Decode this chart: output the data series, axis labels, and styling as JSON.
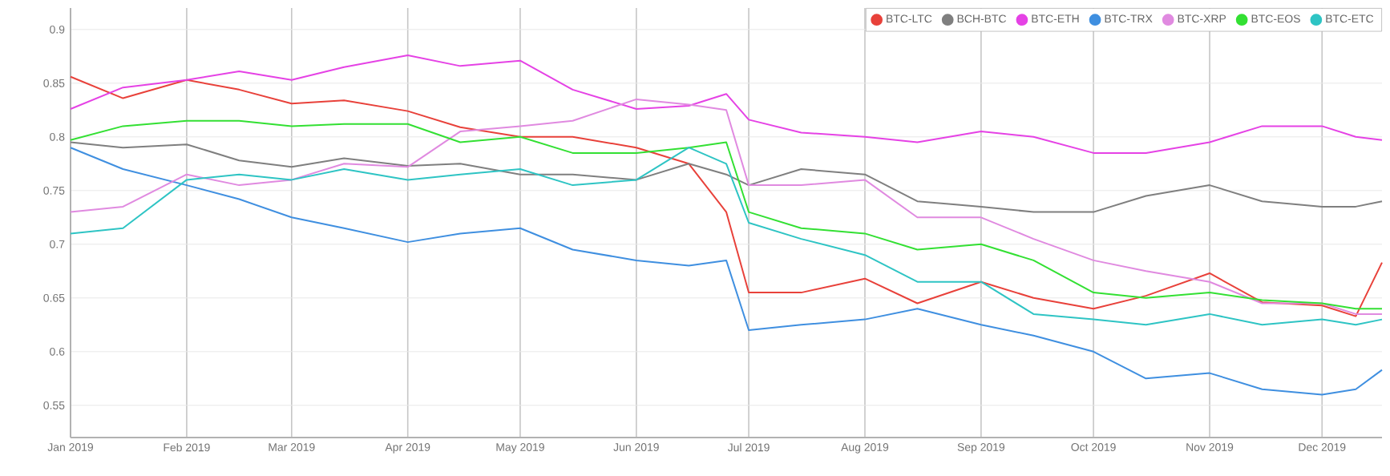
{
  "chart_data": {
    "type": "line",
    "x": [
      "2019-01-01",
      "2019-01-15",
      "2019-02-01",
      "2019-02-15",
      "2019-03-01",
      "2019-03-15",
      "2019-04-01",
      "2019-04-15",
      "2019-05-01",
      "2019-05-15",
      "2019-06-01",
      "2019-06-15",
      "2019-06-25",
      "2019-07-01",
      "2019-07-15",
      "2019-08-01",
      "2019-08-15",
      "2019-09-01",
      "2019-09-15",
      "2019-10-01",
      "2019-10-15",
      "2019-11-01",
      "2019-11-15",
      "2019-12-01",
      "2019-12-10",
      "2019-12-17"
    ],
    "series": [
      {
        "name": "BTC-LTC",
        "color": "#e8413a",
        "values": [
          0.856,
          0.836,
          0.853,
          0.844,
          0.831,
          0.834,
          0.824,
          0.809,
          0.8,
          0.8,
          0.79,
          0.775,
          0.73,
          0.655,
          0.655,
          0.668,
          0.645,
          0.665,
          0.65,
          0.64,
          0.652,
          0.673,
          0.646,
          0.643,
          0.633,
          0.683
        ]
      },
      {
        "name": "BCH-BTC",
        "color": "#7f7f7f",
        "values": [
          0.795,
          0.79,
          0.793,
          0.778,
          0.772,
          0.78,
          0.773,
          0.775,
          0.765,
          0.765,
          0.76,
          0.775,
          0.765,
          0.755,
          0.77,
          0.765,
          0.74,
          0.735,
          0.73,
          0.73,
          0.745,
          0.755,
          0.74,
          0.735,
          0.735,
          0.74
        ]
      },
      {
        "name": "BTC-ETH",
        "color": "#e542e5",
        "values": [
          0.826,
          0.846,
          0.853,
          0.861,
          0.853,
          0.865,
          0.876,
          0.866,
          0.871,
          0.844,
          0.826,
          0.829,
          0.84,
          0.816,
          0.804,
          0.8,
          0.795,
          0.805,
          0.8,
          0.785,
          0.785,
          0.795,
          0.81,
          0.81,
          0.8,
          0.797
        ]
      },
      {
        "name": "BTC-TRX",
        "color": "#3f8fe0",
        "values": [
          0.79,
          0.77,
          0.755,
          0.742,
          0.725,
          0.715,
          0.702,
          0.71,
          0.715,
          0.695,
          0.685,
          0.68,
          0.685,
          0.62,
          0.625,
          0.63,
          0.64,
          0.625,
          0.615,
          0.6,
          0.575,
          0.58,
          0.565,
          0.56,
          0.565,
          0.583
        ]
      },
      {
        "name": "BTC-XRP",
        "color": "#e08ae0",
        "values": [
          0.73,
          0.735,
          0.765,
          0.755,
          0.76,
          0.775,
          0.772,
          0.805,
          0.81,
          0.815,
          0.835,
          0.83,
          0.825,
          0.755,
          0.755,
          0.76,
          0.725,
          0.725,
          0.705,
          0.685,
          0.675,
          0.665,
          0.645,
          0.645,
          0.635,
          0.635
        ]
      },
      {
        "name": "BTC-EOS",
        "color": "#33e033",
        "values": [
          0.797,
          0.81,
          0.815,
          0.815,
          0.81,
          0.812,
          0.812,
          0.795,
          0.8,
          0.785,
          0.785,
          0.79,
          0.795,
          0.73,
          0.715,
          0.71,
          0.695,
          0.7,
          0.685,
          0.655,
          0.65,
          0.655,
          0.648,
          0.645,
          0.64,
          0.64
        ]
      },
      {
        "name": "BTC-ETC",
        "color": "#2ec4c4",
        "values": [
          0.71,
          0.715,
          0.76,
          0.765,
          0.76,
          0.77,
          0.76,
          0.765,
          0.77,
          0.755,
          0.76,
          0.79,
          0.775,
          0.72,
          0.705,
          0.69,
          0.665,
          0.665,
          0.635,
          0.63,
          0.625,
          0.635,
          0.625,
          0.63,
          0.625,
          0.63
        ]
      }
    ],
    "xlim": [
      "2019-01-01",
      "2019-12-17"
    ],
    "xticks": [
      {
        "value": "2019-01-01",
        "label": "Jan 2019"
      },
      {
        "value": "2019-02-01",
        "label": "Feb 2019"
      },
      {
        "value": "2019-03-01",
        "label": "Mar 2019"
      },
      {
        "value": "2019-04-01",
        "label": "Apr 2019"
      },
      {
        "value": "2019-05-01",
        "label": "May 2019"
      },
      {
        "value": "2019-06-01",
        "label": "Jun 2019"
      },
      {
        "value": "2019-07-01",
        "label": "Jul 2019"
      },
      {
        "value": "2019-08-01",
        "label": "Aug 2019"
      },
      {
        "value": "2019-09-01",
        "label": "Sep 2019"
      },
      {
        "value": "2019-10-01",
        "label": "Oct 2019"
      },
      {
        "value": "2019-11-01",
        "label": "Nov 2019"
      },
      {
        "value": "2019-12-01",
        "label": "Dec 2019"
      }
    ],
    "ylim": [
      0.52,
      0.92
    ],
    "yticks": [
      0.55,
      0.6,
      0.65,
      0.7,
      0.75,
      0.8,
      0.85,
      0.9
    ],
    "grid": true,
    "legend": "top right"
  }
}
